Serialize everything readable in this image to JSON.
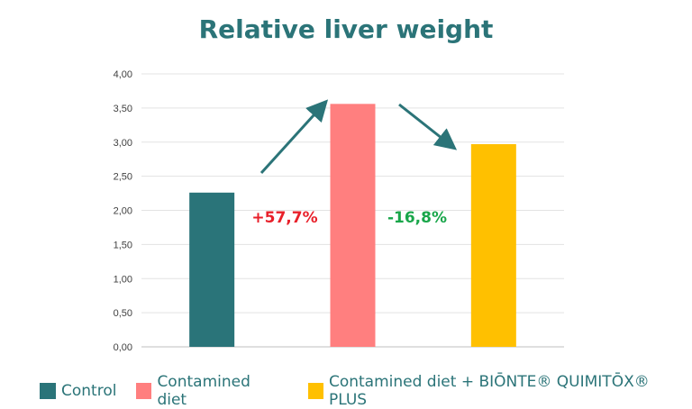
{
  "chart_data": {
    "type": "bar",
    "title": "Relative liver weight",
    "xlabel": "",
    "ylabel": "",
    "categories": [
      "Control",
      "Contamined diet",
      "Contamined diet + BIŌNTE® QUIMITŌX® PLUS"
    ],
    "values": [
      2.26,
      3.56,
      2.97
    ],
    "colors": [
      "#2a7479",
      "#ff7f7f",
      "#ffc000"
    ],
    "ylim": [
      0,
      4
    ],
    "yticks": [
      "0,00",
      "0,50",
      "1,00",
      "1,50",
      "2,00",
      "2,50",
      "3,00",
      "3,50",
      "4,00"
    ],
    "grid": true,
    "legend_placement": "bottom",
    "annotations": [
      {
        "text": "+57,7%",
        "color": "#e8202a",
        "direction": "up"
      },
      {
        "text": "-16,8%",
        "color": "#19a64a",
        "direction": "down"
      }
    ],
    "arrow_color": "#2b7478"
  }
}
